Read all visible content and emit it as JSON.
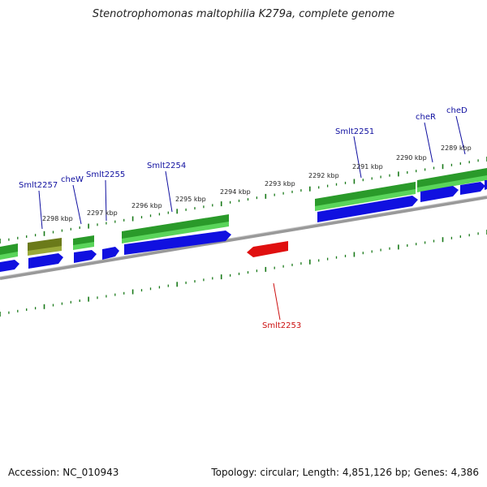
{
  "title": "Stenotrophomonas maltophilia K279a, complete genome",
  "footer": {
    "accession": "Accession: NC_010943",
    "stats": "Topology: circular; Length: 4,851,126 bp; Genes: 4,386"
  },
  "scale_labels": [
    "2298 kbp",
    "2297 kbp",
    "2296 kbp",
    "2295 kbp",
    "2294 kbp",
    "2293 kbp",
    "2292 kbp",
    "2291 kbp",
    "2290 kbp",
    "2289 kbp"
  ],
  "gene_labels": [
    "Smlt2257",
    "cheW",
    "Smlt2255",
    "Smlt2254",
    "Smlt2251",
    "cheR",
    "cheD",
    "Smlt2253"
  ],
  "colors": {
    "cds_forward": "#1010e0",
    "cds_reverse": "#e01010",
    "gene_band": "#2a9a2a",
    "gene_band_light": "#5ad45a",
    "gene_band_olive": "#6b7a1a",
    "backbone": "#888888",
    "tick": "#1a7a1a",
    "label_blue": "#1010a0",
    "label_red": "#cc1010"
  }
}
